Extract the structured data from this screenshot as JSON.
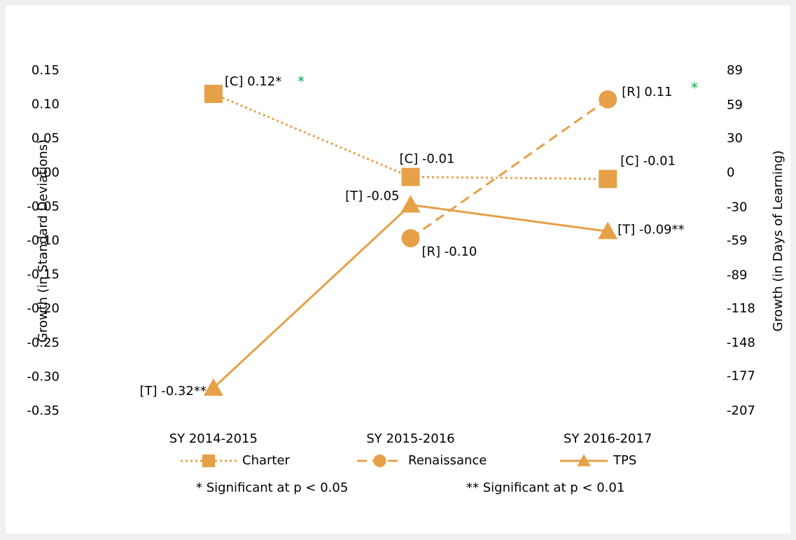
{
  "chart_data": {
    "type": "line",
    "y_label": "Growth (in Standard Deviations)",
    "y2_label": "Growth (in Days of Learning)",
    "categories": [
      "SY 2014-2015",
      "SY 2015-2016",
      "SY 2016-2017"
    ],
    "series": [
      {
        "name": "Charter",
        "color": "#e6a048",
        "dash": "dotted",
        "marker": "square",
        "values": [
          0.116,
          -0.006,
          -0.009
        ],
        "value_labels": [
          "[C] 0.12*",
          "[C] -0.01",
          "[C] -0.01"
        ]
      },
      {
        "name": "Renaissance",
        "color": "#e6a048",
        "dash": "dashed",
        "marker": "circle",
        "values": [
          null,
          -0.096,
          0.108
        ],
        "value_labels": [
          null,
          "[R] -0.10",
          "[R] 0.11"
        ]
      },
      {
        "name": "TPS",
        "color": "#e6a048",
        "dash": "solid",
        "marker": "triangle",
        "values": [
          -0.316,
          -0.047,
          -0.086
        ],
        "value_labels": [
          "[T] -0.32**",
          "[T] -0.05",
          "[T] -0.09**"
        ]
      }
    ],
    "significance_marks": {
      "color": "#00b050",
      "labels": [
        "*",
        "*"
      ]
    },
    "ylim": [
      -0.35,
      0.15
    ],
    "yticks": [
      {
        "value": 0.15,
        "label": "0.15"
      },
      {
        "value": 0.1,
        "label": "0.10"
      },
      {
        "value": 0.05,
        "label": "0.05"
      },
      {
        "value": 0,
        "label": "0.00"
      },
      {
        "value": -0.05,
        "label": "-0.05"
      },
      {
        "value": -0.1,
        "label": "-0.10"
      },
      {
        "value": -0.15,
        "label": "-0.15"
      },
      {
        "value": -0.2,
        "label": "-0.20"
      },
      {
        "value": -0.25,
        "label": "-0.25"
      },
      {
        "value": -0.3,
        "label": "-0.30"
      },
      {
        "value": -0.35,
        "label": "-0.35"
      }
    ],
    "y2lim": [
      -207,
      89
    ],
    "y2ticks": [
      89,
      59,
      30,
      0,
      -30,
      -59,
      -89,
      -118,
      -148,
      -177,
      -207
    ],
    "grid": false,
    "legend": "bottom",
    "footnotes": [
      "* Significant at p < 0.05",
      "** Significant at p < 0.01"
    ]
  }
}
